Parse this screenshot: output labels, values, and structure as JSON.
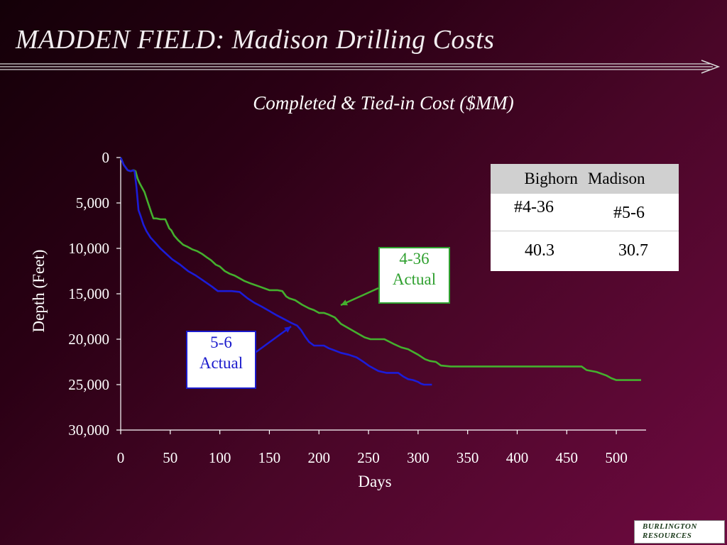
{
  "title": "MADDEN FIELD: Madison Drilling Costs",
  "logo": {
    "line1": "BURLINGTON",
    "line2": "RESOURCES"
  },
  "cost_table": {
    "caption": "Completed & Tied-in Cost ($MM)",
    "headers": [
      "Bighorn",
      "Madison"
    ],
    "wells": [
      "#4-36",
      "#5-6"
    ],
    "costs": [
      "40.3",
      "30.7"
    ]
  },
  "callouts": {
    "well_436": [
      "4-36",
      "Actual"
    ],
    "well_56": [
      "5-6",
      "Actual"
    ]
  },
  "colors": {
    "well_436": "#44b02e",
    "well_56": "#1c1cd8",
    "background_dark": "#140008",
    "background_light": "#6e0a40"
  },
  "chart_data": {
    "type": "line",
    "title": "",
    "xlabel": "Days",
    "ylabel": "Depth (Feet)",
    "xlim": [
      0,
      530
    ],
    "ylim": [
      0,
      30000
    ],
    "y_inverted": true,
    "x_ticks": [
      "0",
      "50",
      "100",
      "150",
      "200",
      "250",
      "300",
      "350",
      "400",
      "450",
      "500"
    ],
    "y_ticks": [
      "0",
      "5,000",
      "10,000",
      "15,000",
      "20,000",
      "25,000",
      "30,000"
    ],
    "grid": false,
    "series": [
      {
        "name": "4-36 Actual",
        "x": [
          0,
          3,
          7,
          10,
          13,
          15,
          17,
          19,
          21,
          24,
          27,
          31,
          33,
          34,
          36,
          40,
          45,
          49,
          51,
          54,
          58,
          63,
          67,
          72,
          77,
          82,
          87,
          91,
          96,
          100,
          105,
          110,
          115,
          120,
          125,
          132,
          140,
          150,
          158,
          163,
          167,
          170,
          176,
          183,
          190,
          195,
          200,
          205,
          210,
          216,
          222,
          230,
          238,
          246,
          252,
          258,
          266,
          275,
          283,
          290,
          300,
          307,
          312,
          318,
          323,
          333,
          345,
          360,
          380,
          400,
          420,
          450,
          465,
          470,
          480,
          490,
          495,
          500,
          510,
          525
        ],
        "y": [
          0,
          800,
          1400,
          1500,
          1400,
          1500,
          2300,
          2800,
          3200,
          3800,
          4800,
          6100,
          6700,
          6700,
          6700,
          6800,
          6800,
          7800,
          8000,
          8600,
          9100,
          9600,
          9800,
          10100,
          10300,
          10600,
          11000,
          11300,
          11800,
          12000,
          12500,
          12800,
          13000,
          13300,
          13600,
          13900,
          14200,
          14600,
          14600,
          14700,
          15300,
          15500,
          15700,
          16200,
          16600,
          16800,
          17100,
          17100,
          17300,
          17600,
          18300,
          18800,
          19300,
          19800,
          20000,
          20000,
          20000,
          20500,
          20900,
          21100,
          21700,
          22200,
          22400,
          22500,
          22900,
          23000,
          23000,
          23000,
          23000,
          23000,
          23000,
          23000,
          23000,
          23400,
          23600,
          24000,
          24300,
          24500,
          24500,
          24500
        ]
      },
      {
        "name": "5-6 Actual",
        "x": [
          0,
          3,
          7,
          10,
          12,
          14,
          16,
          18,
          20,
          23,
          26,
          30,
          35,
          40,
          45,
          52,
          60,
          68,
          76,
          84,
          92,
          98,
          105,
          112,
          120,
          128,
          135,
          142,
          150,
          158,
          165,
          172,
          178,
          182,
          186,
          190,
          195,
          200,
          205,
          210,
          215,
          222,
          230,
          238,
          245,
          250,
          255,
          260,
          264,
          268,
          272,
          276,
          280,
          285,
          290,
          295,
          300,
          303,
          306,
          310,
          314
        ],
        "y": [
          0,
          800,
          1400,
          1500,
          1400,
          1500,
          3300,
          5800,
          6400,
          7400,
          8100,
          8800,
          9400,
          10000,
          10500,
          11200,
          11800,
          12500,
          13000,
          13600,
          14200,
          14700,
          14700,
          14700,
          14800,
          15500,
          16000,
          16400,
          16900,
          17400,
          17800,
          18200,
          18500,
          19000,
          19700,
          20300,
          20700,
          20700,
          20700,
          21000,
          21200,
          21500,
          21700,
          22000,
          22500,
          22900,
          23200,
          23500,
          23600,
          23700,
          23700,
          23700,
          23700,
          24100,
          24400,
          24500,
          24700,
          24900,
          25000,
          25000,
          25000
        ]
      }
    ]
  }
}
